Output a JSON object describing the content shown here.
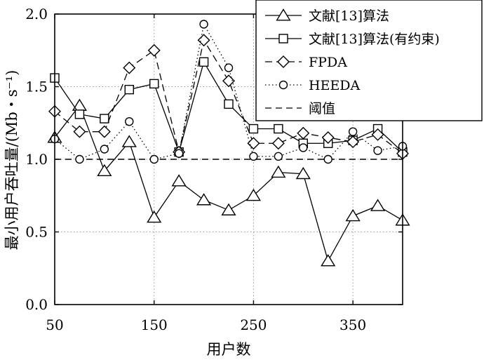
{
  "chart_data": {
    "type": "line",
    "xlabel": "用户数",
    "ylabel": "最小用户吞吐量/(Mb・s⁻¹)",
    "xlim": [
      50,
      400
    ],
    "ylim": [
      0,
      2
    ],
    "xticks": [
      50,
      150,
      250,
      350
    ],
    "yticks": [
      0.0,
      0.5,
      1.0,
      1.5,
      2.0
    ],
    "ytick_labels": [
      "0.0",
      "0.5",
      "1.0",
      "1.5",
      "2.0"
    ],
    "grid": "dotted",
    "legend_position": "top-right",
    "x": [
      50,
      75,
      100,
      125,
      150,
      175,
      200,
      225,
      250,
      275,
      300,
      325,
      350,
      375,
      400
    ],
    "threshold": 1.0,
    "series": [
      {
        "name": "文献[13]算法",
        "marker": "triangle",
        "line": "solid",
        "values": [
          1.15,
          1.37,
          0.92,
          1.12,
          0.6,
          0.85,
          0.72,
          0.65,
          0.75,
          0.91,
          0.9,
          0.3,
          0.61,
          0.68,
          0.58
        ]
      },
      {
        "name": "文献[13]算法(有约束)",
        "marker": "square",
        "line": "solid",
        "values": [
          1.56,
          1.31,
          1.28,
          1.48,
          1.52,
          1.05,
          1.67,
          1.38,
          1.21,
          1.21,
          1.11,
          1.11,
          1.13,
          1.21,
          1.05
        ]
      },
      {
        "name": "FPDA",
        "marker": "diamond",
        "line": "dashed",
        "values": [
          1.33,
          1.19,
          1.19,
          1.63,
          1.75,
          1.05,
          1.82,
          1.54,
          1.11,
          1.11,
          1.18,
          1.15,
          1.12,
          1.17,
          1.04
        ]
      },
      {
        "name": "HEEDA",
        "marker": "circle",
        "line": "dotted",
        "values": [
          1.14,
          1.0,
          1.07,
          1.26,
          1.0,
          1.04,
          1.93,
          1.63,
          1.02,
          1.02,
          1.08,
          1.0,
          1.19,
          1.06,
          1.09
        ]
      }
    ],
    "threshold_name": "阈值"
  }
}
